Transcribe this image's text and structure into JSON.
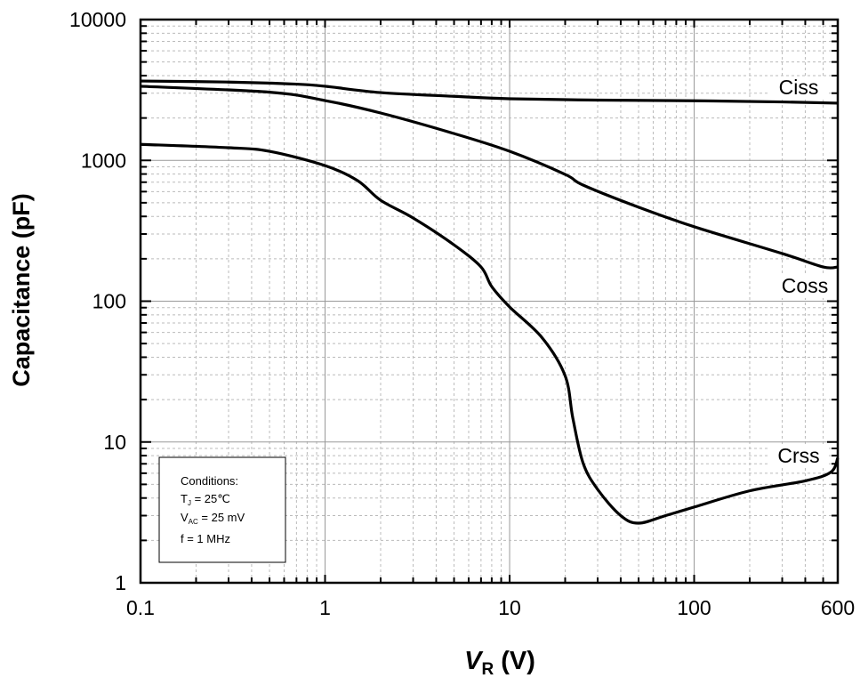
{
  "chart_data": {
    "type": "line",
    "title": "",
    "xlabel": "V",
    "xlabel_sub": "R",
    "xlabel_unit": " (V)",
    "ylabel": "Capacitance (pF)",
    "xscale": "log",
    "yscale": "log",
    "xlim": [
      0.1,
      600
    ],
    "ylim": [
      1,
      10000
    ],
    "xticks": [
      0.1,
      1,
      10,
      100,
      600
    ],
    "xtick_labels": [
      "0.1",
      "1",
      "10",
      "100",
      "600"
    ],
    "yticks": [
      1,
      10,
      100,
      1000,
      10000
    ],
    "ytick_labels": [
      "1",
      "10",
      "100",
      "1000",
      "10000"
    ],
    "grid": true,
    "line_color": "#000000",
    "series": [
      {
        "name": "Ciss",
        "x": [
          0.1,
          0.3,
          0.7,
          1,
          2,
          5,
          10,
          30,
          100,
          300,
          600
        ],
        "y": [
          3660,
          3600,
          3480,
          3360,
          3030,
          2850,
          2740,
          2680,
          2650,
          2600,
          2550
        ]
      },
      {
        "name": "Coss",
        "x": [
          0.1,
          0.5,
          1,
          2,
          5,
          10,
          20,
          25,
          50,
          100,
          300,
          500,
          600
        ],
        "y": [
          3360,
          3050,
          2660,
          2170,
          1550,
          1160,
          795,
          668,
          465,
          338,
          218,
          175,
          175
        ]
      },
      {
        "name": "Crss",
        "x": [
          0.1,
          0.3,
          0.5,
          1,
          1.5,
          2,
          3,
          5,
          7,
          8,
          10,
          15,
          20,
          22,
          25,
          30,
          40,
          50,
          70,
          100,
          200,
          400,
          550,
          600
        ],
        "y": [
          1300,
          1230,
          1160,
          918,
          718,
          521,
          390,
          251,
          175,
          127,
          91,
          55,
          29.5,
          14.8,
          7.1,
          4.6,
          3.0,
          2.65,
          3.0,
          3.45,
          4.5,
          5.3,
          6.1,
          7.7
        ]
      }
    ],
    "annotation": {
      "heading": "Conditions:",
      "lines": [
        {
          "main": "T",
          "sub": "J",
          "rest": " =  25℃"
        },
        {
          "main": "V",
          "sub": "AC",
          "rest": " =  25 mV"
        },
        {
          "main": "f = 1 MHz",
          "sub": "",
          "rest": ""
        }
      ]
    }
  }
}
